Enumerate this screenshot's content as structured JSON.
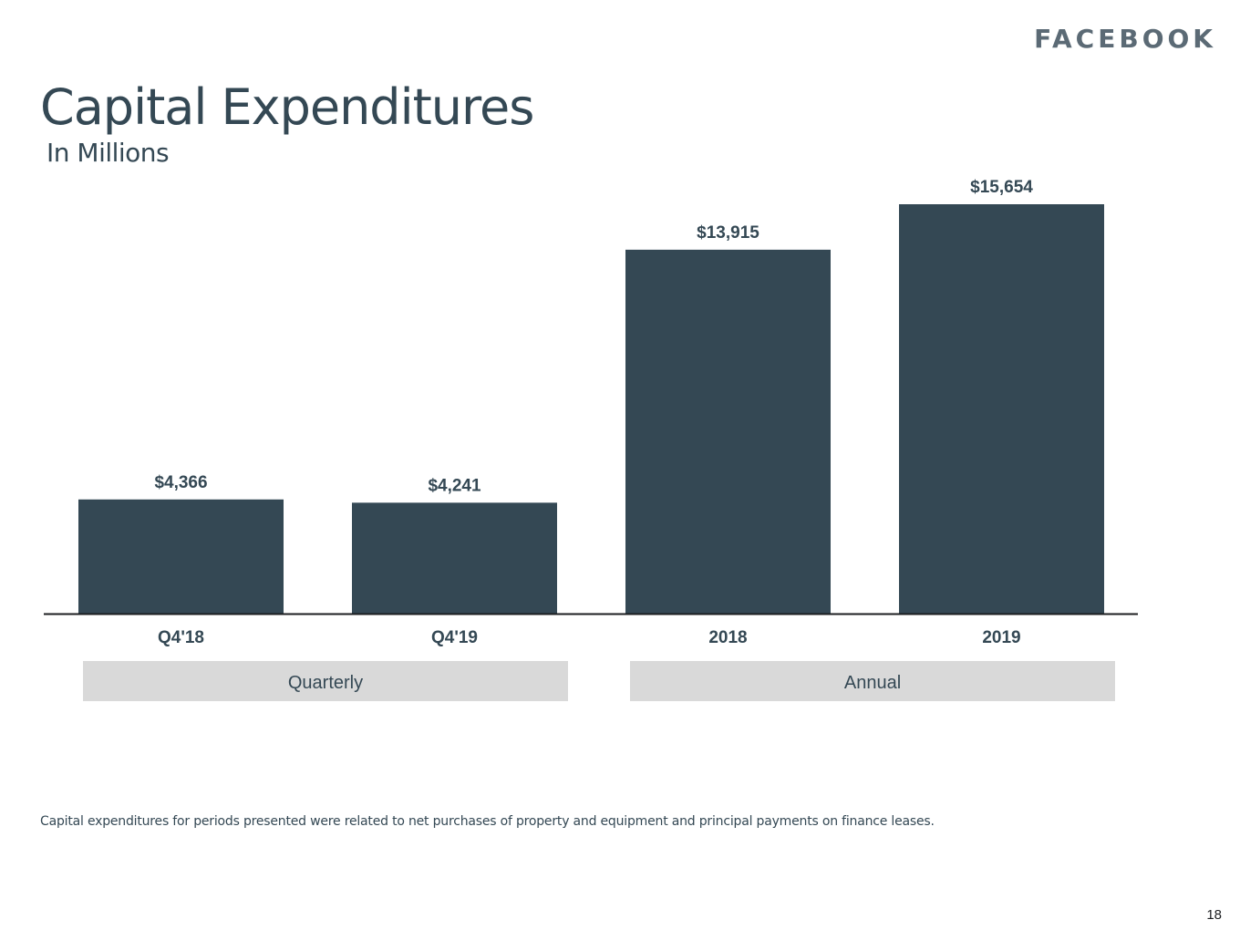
{
  "slide": {
    "logo_text": "FACEBOOK",
    "title": "Capital Expenditures",
    "subtitle": "In Millions",
    "footnote": "Capital expenditures for periods presented were related to net purchases of property and equipment and principal payments on finance leases.",
    "page_number": "18"
  },
  "colors": {
    "bar": "#344854",
    "group_box": "#d9d9d9",
    "axis": "#1c1e21",
    "text": "#344854"
  },
  "chart_data": {
    "type": "bar",
    "title": "Capital Expenditures",
    "subtitle": "In Millions",
    "categories": [
      "Q4'18",
      "Q4'19",
      "2018",
      "2019"
    ],
    "values": [
      4366,
      4241,
      13915,
      15654
    ],
    "value_labels": [
      "$4,366",
      "$4,241",
      "$13,915",
      "$15,654"
    ],
    "groups": [
      {
        "label": "Quarterly",
        "categories": [
          "Q4'18",
          "Q4'19"
        ]
      },
      {
        "label": "Annual",
        "categories": [
          "2018",
          "2019"
        ]
      }
    ],
    "xlabel": "",
    "ylabel": "",
    "ylim": [
      0,
      15654
    ],
    "grid": false,
    "legend": "none"
  }
}
